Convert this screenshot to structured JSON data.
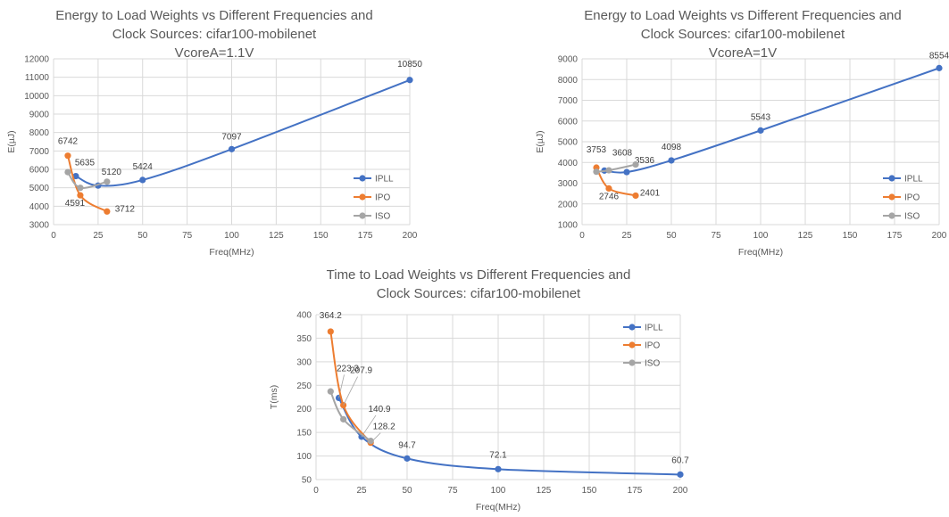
{
  "chart_data": [
    {
      "type": "line",
      "title": [
        "Energy to Load Weights vs Different Frequencies and",
        "Clock Sources: cifar100-mobilenet",
        "VcoreA=1.1V"
      ],
      "xlabel": "Freq(MHz)",
      "ylabel": "E(µJ)",
      "xlim": [
        0,
        200
      ],
      "ylim": [
        3000,
        12000
      ],
      "xticks": [
        0,
        25,
        50,
        75,
        100,
        125,
        150,
        175,
        200
      ],
      "yticks": [
        3000,
        4000,
        5000,
        6000,
        7000,
        8000,
        9000,
        10000,
        11000,
        12000
      ],
      "legend_position": "right",
      "series": [
        {
          "name": "IPLL",
          "color": "#4472c4",
          "x": [
            12.5,
            25,
            50,
            100,
            200
          ],
          "y": [
            5635,
            5120,
            5424,
            7097,
            10850
          ],
          "labels": [
            "5635",
            "5120",
            "5424",
            "7097",
            "10850"
          ]
        },
        {
          "name": "IPO",
          "color": "#ed7d31",
          "x": [
            8,
            15,
            30
          ],
          "y": [
            6742,
            4591,
            3712
          ],
          "labels": [
            "6742",
            "4591",
            "3712"
          ]
        },
        {
          "name": "ISO",
          "color": "#a5a5a5",
          "x": [
            8,
            15,
            30
          ],
          "y": [
            5850,
            5000,
            5330
          ],
          "labels": [
            null,
            null,
            null
          ]
        }
      ]
    },
    {
      "type": "line",
      "title": [
        "Energy to Load Weights vs Different Frequencies and",
        "Clock Sources: cifar100-mobilenet",
        "VcoreA=1V"
      ],
      "xlabel": "Freq(MHz)",
      "ylabel": "E(µJ)",
      "xlim": [
        0,
        200
      ],
      "ylim": [
        1000,
        9000
      ],
      "xticks": [
        0,
        25,
        50,
        75,
        100,
        125,
        150,
        175,
        200
      ],
      "yticks": [
        1000,
        2000,
        3000,
        4000,
        5000,
        6000,
        7000,
        8000,
        9000
      ],
      "legend_position": "right",
      "series": [
        {
          "name": "IPLL",
          "color": "#4472c4",
          "x": [
            12.5,
            25,
            50,
            100,
            200
          ],
          "y": [
            3608,
            3536,
            4098,
            5543,
            8554
          ],
          "labels": [
            "3608",
            "3536",
            "4098",
            "5543",
            "8554"
          ]
        },
        {
          "name": "IPO",
          "color": "#ed7d31",
          "x": [
            8,
            15,
            30
          ],
          "y": [
            3753,
            2746,
            2401
          ],
          "labels": [
            "3753",
            "2746",
            "2401"
          ]
        },
        {
          "name": "ISO",
          "color": "#a5a5a5",
          "x": [
            8,
            15,
            30
          ],
          "y": [
            3550,
            3620,
            3900
          ],
          "labels": [
            null,
            null,
            null
          ]
        }
      ]
    },
    {
      "type": "line",
      "title": [
        "Time to Load Weights vs Different Frequencies and",
        "Clock Sources: cifar100-mobilenet"
      ],
      "xlabel": "Freq(MHz)",
      "ylabel": "T(ms)",
      "xlim": [
        0,
        200
      ],
      "ylim": [
        50,
        400
      ],
      "xticks": [
        0,
        25,
        50,
        75,
        100,
        125,
        150,
        175,
        200
      ],
      "yticks": [
        50,
        100,
        150,
        200,
        250,
        300,
        350,
        400
      ],
      "legend_position": "top-right",
      "series": [
        {
          "name": "IPLL",
          "color": "#4472c4",
          "x": [
            12.5,
            25,
            50,
            100,
            200
          ],
          "y": [
            223.3,
            140.9,
            94.7,
            72.1,
            60.7
          ],
          "labels": [
            "223.3",
            "140.9",
            "94.7",
            "72.1",
            "60.7"
          ]
        },
        {
          "name": "IPO",
          "color": "#ed7d31",
          "x": [
            8,
            15,
            30
          ],
          "y": [
            364.2,
            207.9,
            128.2
          ],
          "labels": [
            "364.2",
            "207.9",
            "128.2"
          ]
        },
        {
          "name": "ISO",
          "color": "#a5a5a5",
          "x": [
            8,
            15,
            30
          ],
          "y": [
            237,
            178,
            132
          ],
          "labels": [
            null,
            null,
            null
          ]
        }
      ]
    }
  ]
}
